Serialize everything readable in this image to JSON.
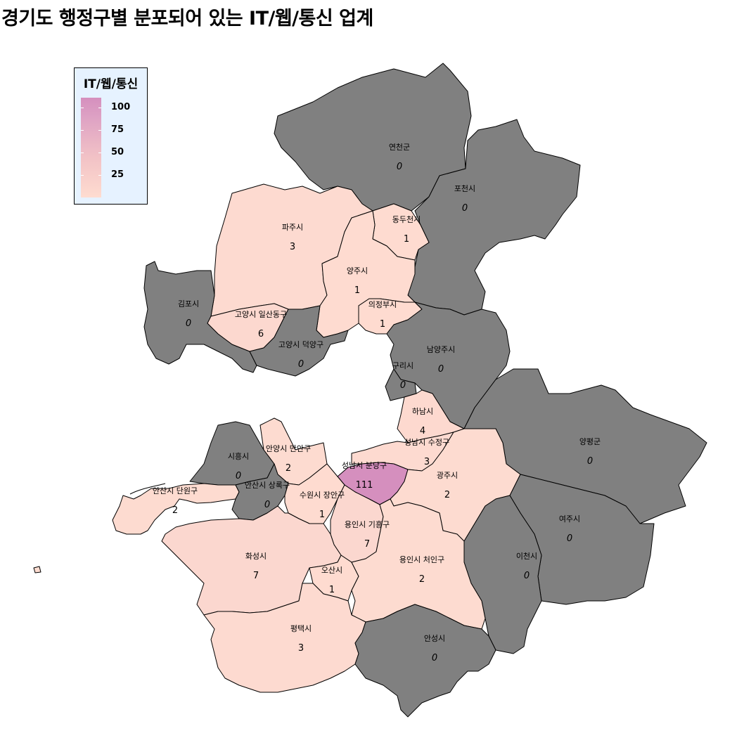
{
  "title": "경기도 행정구별 분포되어 있는 IT/웹/통신 업계",
  "legend": {
    "title": "IT/웹/통신",
    "ticks": [
      {
        "label": "100",
        "value": 100
      },
      {
        "label": "75",
        "value": 75
      },
      {
        "label": "50",
        "value": 50
      },
      {
        "label": "25",
        "value": 25
      }
    ],
    "min": 0,
    "max": 111
  },
  "colors": {
    "zero": "#808080",
    "low": "#fedcd0",
    "high": "#d58fbe",
    "legend_bg": "#e6f2ff",
    "border": "#000000"
  },
  "regions": [
    {
      "name": "연천군",
      "value_label": "0",
      "value": 0
    },
    {
      "name": "포천시",
      "value_label": "0",
      "value": 0
    },
    {
      "name": "파주시",
      "value_label": "3",
      "value": 3
    },
    {
      "name": "동두천시",
      "value_label": "1",
      "value": 1
    },
    {
      "name": "양주시",
      "value_label": "1",
      "value": 1
    },
    {
      "name": "김포시",
      "value_label": "0",
      "value": 0
    },
    {
      "name": "고양시 일산동구",
      "value_label": "6",
      "value": 6
    },
    {
      "name": "의정부시",
      "value_label": "1",
      "value": 1
    },
    {
      "name": "고양시 덕양구",
      "value_label": "0",
      "value": 0
    },
    {
      "name": "남양주시",
      "value_label": "0",
      "value": 0
    },
    {
      "name": "구리시",
      "value_label": "0",
      "value": 0
    },
    {
      "name": "하남시",
      "value_label": "4",
      "value": 4
    },
    {
      "name": "양평군",
      "value_label": "0",
      "value": 0
    },
    {
      "name": "시흥시",
      "value_label": "0",
      "value": 0
    },
    {
      "name": "안양시 만안구",
      "value_label": "2",
      "value": 2
    },
    {
      "name": "성남시 수정구",
      "value_label": "3",
      "value": 3
    },
    {
      "name": "성남시 분당구",
      "value_label": "111",
      "value": 111
    },
    {
      "name": "광주시",
      "value_label": "2",
      "value": 2
    },
    {
      "name": "안산시 단원구",
      "value_label": "2",
      "value": 2
    },
    {
      "name": "안산시 상록구",
      "value_label": "0",
      "value": 0
    },
    {
      "name": "수원시 장안구",
      "value_label": "1",
      "value": 1
    },
    {
      "name": "용인시 기흥구",
      "value_label": "7",
      "value": 7
    },
    {
      "name": "여주시",
      "value_label": "0",
      "value": 0
    },
    {
      "name": "화성시",
      "value_label": "7",
      "value": 7
    },
    {
      "name": "이천시",
      "value_label": "0",
      "value": 0
    },
    {
      "name": "오산시",
      "value_label": "1",
      "value": 1
    },
    {
      "name": "용인시 처인구",
      "value_label": "2",
      "value": 2
    },
    {
      "name": "평택시",
      "value_label": "3",
      "value": 3
    },
    {
      "name": "안성시",
      "value_label": "0",
      "value": 0
    }
  ]
}
